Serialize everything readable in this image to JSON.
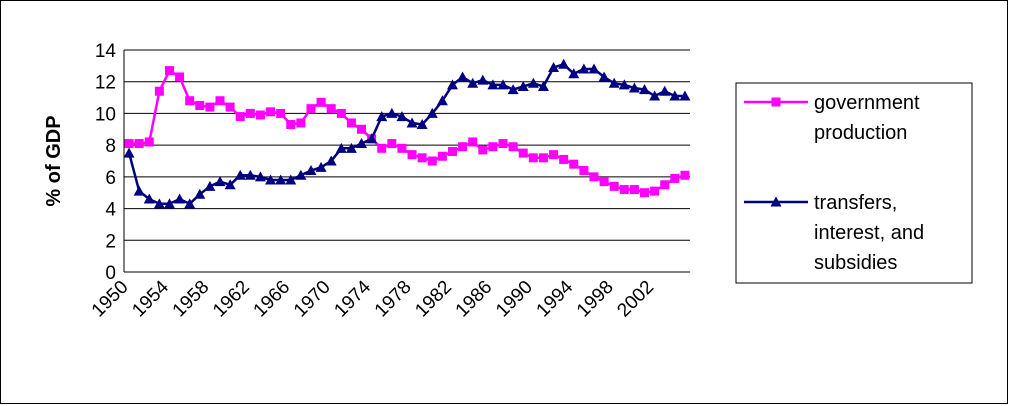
{
  "chart_data": {
    "type": "line",
    "title": "",
    "xlabel": "",
    "ylabel": "% of GDP",
    "ylim": [
      0,
      14
    ],
    "yticks": [
      "0",
      "2",
      "4",
      "6",
      "8",
      "10",
      "12",
      "14"
    ],
    "xtick_labels": [
      "1950",
      "1954",
      "1958",
      "1962",
      "1966",
      "1970",
      "1974",
      "1978",
      "1982",
      "1986",
      "1990",
      "1994",
      "1998",
      "2002"
    ],
    "grid": "horizontal",
    "legend_position": "right",
    "x": [
      1950,
      1951,
      1952,
      1953,
      1954,
      1955,
      1956,
      1957,
      1958,
      1959,
      1960,
      1961,
      1962,
      1963,
      1964,
      1965,
      1966,
      1967,
      1968,
      1969,
      1970,
      1971,
      1972,
      1973,
      1974,
      1975,
      1976,
      1977,
      1978,
      1979,
      1980,
      1981,
      1982,
      1983,
      1984,
      1985,
      1986,
      1987,
      1988,
      1989,
      1990,
      1991,
      1992,
      1993,
      1994,
      1995,
      1996,
      1997,
      1998,
      1999,
      2000,
      2001,
      2002,
      2003,
      2004,
      2005
    ],
    "series": [
      {
        "name": "government production",
        "color": "#ff00ff",
        "marker": "square",
        "values": [
          8.1,
          8.1,
          8.2,
          11.4,
          12.7,
          12.3,
          10.8,
          10.5,
          10.4,
          10.8,
          10.4,
          9.8,
          10.0,
          9.9,
          10.1,
          10.0,
          9.3,
          9.4,
          10.3,
          10.7,
          10.3,
          10.0,
          9.4,
          9.0,
          8.4,
          7.8,
          8.1,
          7.8,
          7.4,
          7.2,
          7.0,
          7.3,
          7.6,
          7.9,
          8.2,
          7.7,
          7.9,
          8.1,
          7.9,
          7.5,
          7.2,
          7.2,
          7.4,
          7.1,
          6.8,
          6.4,
          6.0,
          5.7,
          5.4,
          5.2,
          5.2,
          5.0,
          5.1,
          5.5,
          5.9,
          6.1
        ]
      },
      {
        "name": "transfers, interest, and subsidies",
        "name_lines": [
          "transfers,",
          "interest, and",
          "subsidies"
        ],
        "color": "#000080",
        "marker": "triangle",
        "values": [
          7.5,
          5.1,
          4.6,
          4.3,
          4.3,
          4.6,
          4.3,
          4.9,
          5.4,
          5.7,
          5.5,
          6.1,
          6.1,
          6.0,
          5.8,
          5.8,
          5.8,
          6.1,
          6.4,
          6.6,
          7.0,
          7.8,
          7.8,
          8.1,
          8.4,
          9.8,
          10.0,
          9.8,
          9.4,
          9.3,
          10.0,
          10.8,
          11.8,
          12.3,
          11.9,
          12.1,
          11.8,
          11.8,
          11.5,
          11.7,
          11.9,
          11.7,
          12.9,
          13.1,
          12.5,
          12.8,
          12.8,
          12.3,
          11.9,
          11.8,
          11.6,
          11.5,
          11.1,
          11.4,
          11.1,
          11.1
        ]
      }
    ]
  }
}
